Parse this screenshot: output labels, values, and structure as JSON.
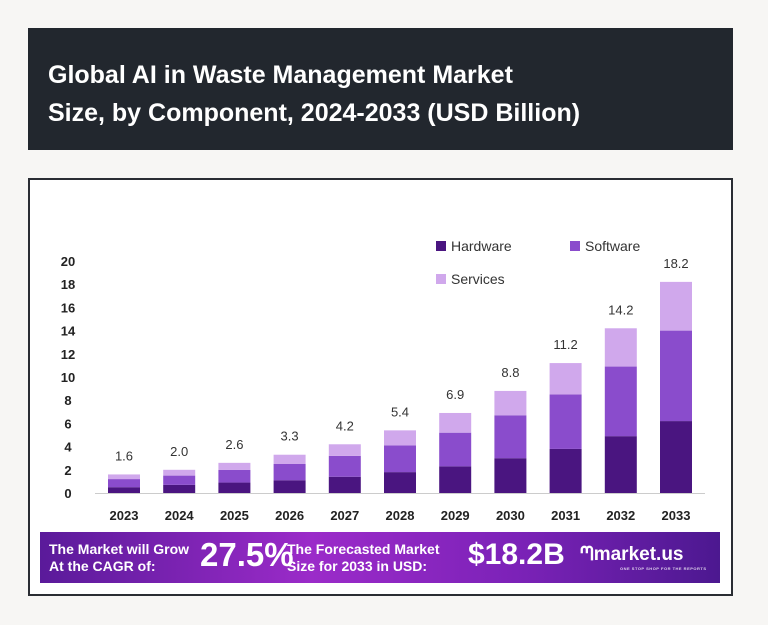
{
  "title": {
    "line1": "Global AI in Waste Management Market",
    "line2": "Size, by Component, 2024-2033 (USD Billion)"
  },
  "chart_data": {
    "type": "bar",
    "stacked": true,
    "categories": [
      "2023",
      "2024",
      "2025",
      "2026",
      "2027",
      "2028",
      "2029",
      "2030",
      "2031",
      "2032",
      "2033"
    ],
    "series": [
      {
        "name": "Hardware",
        "color": "#4a1580",
        "values": [
          0.5,
          0.7,
          0.9,
          1.1,
          1.4,
          1.8,
          2.3,
          3.0,
          3.8,
          4.9,
          6.2
        ]
      },
      {
        "name": "Software",
        "color": "#8a4ccc",
        "values": [
          0.7,
          0.8,
          1.1,
          1.4,
          1.8,
          2.3,
          2.9,
          3.7,
          4.7,
          6.0,
          7.8
        ]
      },
      {
        "name": "Services",
        "color": "#d0a8ec",
        "values": [
          0.4,
          0.5,
          0.6,
          0.8,
          1.0,
          1.3,
          1.7,
          2.1,
          2.7,
          3.3,
          4.2
        ]
      }
    ],
    "totals": [
      "1.6",
      "2.0",
      "2.6",
      "3.3",
      "4.2",
      "5.4",
      "6.9",
      "8.8",
      "11.2",
      "14.2",
      "18.2"
    ],
    "yticks": [
      "0",
      "2",
      "4",
      "6",
      "8",
      "10",
      "12",
      "14",
      "16",
      "18",
      "20"
    ],
    "ylim": [
      0,
      20
    ],
    "grid": false,
    "legend": "top-right"
  },
  "banner": {
    "text1a": "The Market will Grow",
    "text1b": "At the CAGR of:",
    "cagr": "27.5%",
    "text2a": "The Forecasted Market",
    "text2b": "Size for 2033 in USD:",
    "forecast": "$18.2B",
    "logo": "market.us",
    "tagline": "ONE STOP SHOP FOR THE REPORTS"
  }
}
